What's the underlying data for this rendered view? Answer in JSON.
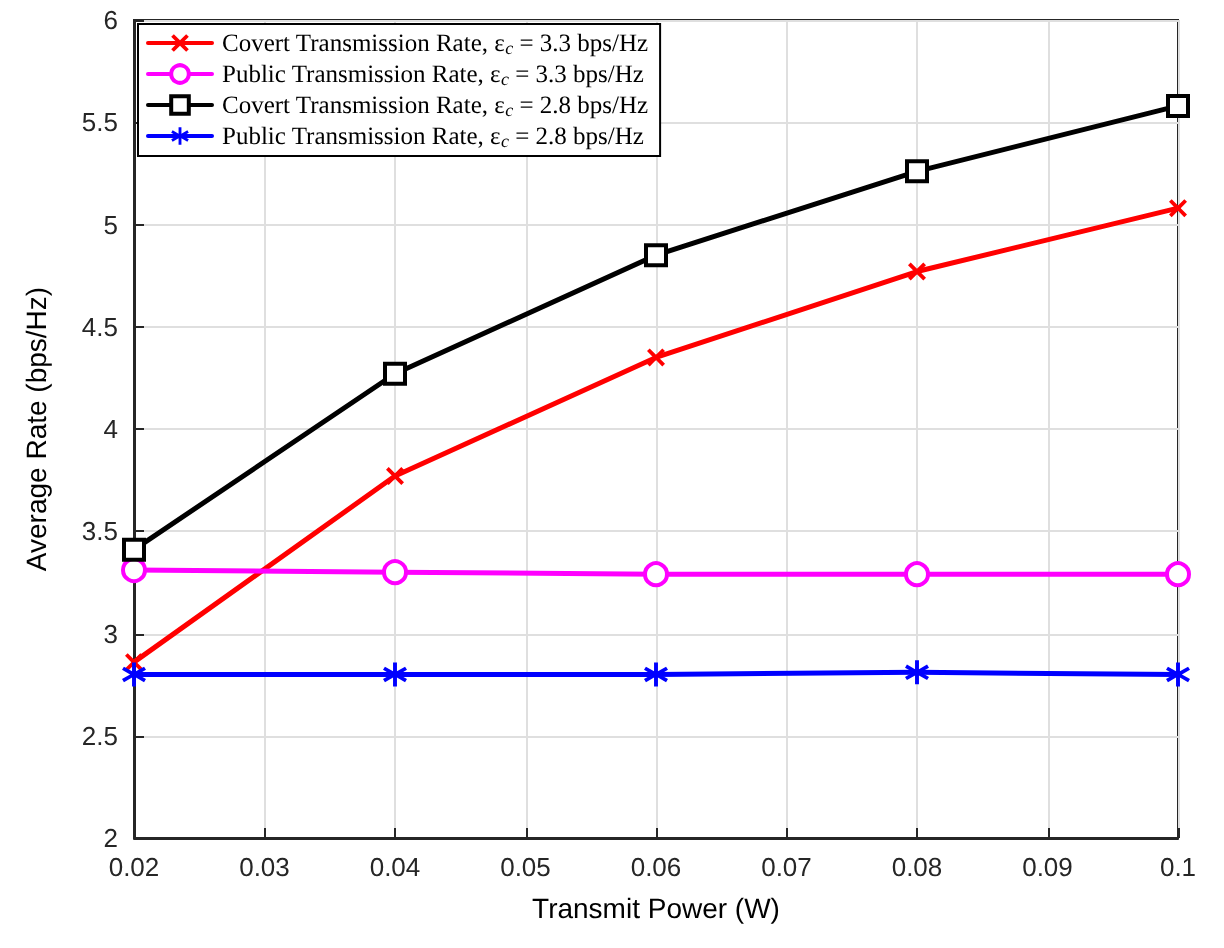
{
  "chart_data": {
    "type": "line",
    "xlabel": "Transmit Power (W)",
    "ylabel": "Average Rate (bps/Hz)",
    "x": [
      0.02,
      0.04,
      0.06,
      0.08,
      0.1
    ],
    "series": [
      {
        "name": "Covert Transmission Rate, ε$_{c}$ = 3.3 bps/Hz",
        "color": "#ff0000",
        "marker": "cross",
        "values": [
          2.86,
          3.77,
          4.35,
          4.77,
          5.08
        ]
      },
      {
        "name": "Public Transmission Rate, ε$_{c}$ = 3.3 bps/Hz",
        "color": "#ff00ff",
        "marker": "circle",
        "values": [
          3.31,
          3.3,
          3.29,
          3.29,
          3.29
        ]
      },
      {
        "name": "Covert Transmission Rate, ε$_{c}$ = 2.8 bps/Hz",
        "color": "#000000",
        "marker": "square",
        "values": [
          3.41,
          4.27,
          4.85,
          5.26,
          5.58
        ]
      },
      {
        "name": "Public Transmission Rate, ε$_{c}$ = 2.8 bps/Hz",
        "color": "#0000ff",
        "marker": "star",
        "values": [
          2.8,
          2.8,
          2.8,
          2.81,
          2.8
        ]
      }
    ],
    "xlim": [
      0.02,
      0.1
    ],
    "xticks": [
      0.02,
      0.03,
      0.04,
      0.05,
      0.06,
      0.07,
      0.08,
      0.09,
      0.1
    ],
    "ylim": [
      2,
      6
    ],
    "yticks": [
      2,
      2.5,
      3,
      3.5,
      4,
      4.5,
      5,
      5.5,
      6
    ],
    "grid": true,
    "legend": "top left",
    "line_style": "solid"
  }
}
